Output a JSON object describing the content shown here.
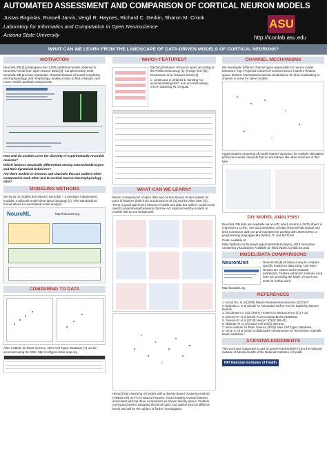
{
  "header": {
    "title": "AUTOMATED ASSESSMENT AND COMPARISON OF CORTICAL NEURON MODELS",
    "authors": "Justas Birgiolas, Russell Jarvis, Vergil R. Haynes, Richard C. Gerkin, Sharon M. Crook",
    "lab": "Laboratory for Informatics and Computation in Open Neuroscience",
    "university": "Arizona State University",
    "logo_text": "ASU",
    "url": "http://iconlab.asu.edu"
  },
  "question": "WHAT CAN WE LEARN FROM THE LANDSCAPE OF DATA-DRIVEN MODELS OF CORTICAL NEURONS?",
  "motivation": {
    "heading": "MOTIVATION",
    "body": "NeuroML-DB [2] catalogues over 1,000 published models obtained in NeuroML format from Open Source Brain [5]. Complementing OSB, NeuroML-DB provides systematic characterizations of model complexity, electrophysiology, and morphology, making it easy to find, evaluate, and reuse models and their components.",
    "q1": "How well do models cover the diversity of experimentally recorded neurons?",
    "q2": "Which features maximally differentiate among neuron/model types and their dynamical behaviors?",
    "q3": "Are there models or neurons and channels that are outliers when compared to each other and to cortical neuron electrophysiology data?"
  },
  "methods": {
    "heading": "MODELING METHODS",
    "body": "We focus on models described in NeuroML – a simulator independent, modular, multiscale model description language [4]. This standardized format allows for automated model analysis.",
    "neuroml_label": "NeuroML",
    "neuroml_url": "http://neuroml.org"
  },
  "comparing": {
    "heading": "COMPARING TO DATA",
    "body": "Allen Institute for Brain Science, Allen Cell Types Database [7] can be accessed using the SDK. http://celltypes.brain-map.org"
  },
  "features": {
    "heading": "WHICH FEATURES?",
    "body": "Electrical behavior of neuron types according to the Petilla terminology [1]. (Image from [6].) Druckmann et al. features below [3].",
    "codes": "c: continuous  d: delayed  b: bursting  AC: accommodating  NAC: non-accommodating  STUT: stuttering  IR: irregular"
  },
  "learn": {
    "heading": "WHAT CAN WE LEARN?",
    "body": "Below: Comparisons of open data and cortical neuron model outputs for pairs of features (both from Druckmann et al. [3] and the Allen SDK [7]). There is good agreement between models and data but outliers could reveal specific experimental behaviors that are not captured well by models or models that do not fit data well.",
    "cluster_body": "Hierarchical clustering of models with a density-based clustering method (HDBSCAN) on PCA-reduced features. Factor loading reveals features associated with top three components as shown directly above. Clusters correspond well to assigned electrical types, but outliers exist at different levels and will be the subject of further investigation."
  },
  "channels": {
    "heading": "CHANNEL MECHANISMS",
    "body": "We investigate different channel types responsible for neuron model behaviors. Top: Projected clusters of cortical neuron models in feature space. Bottom: Normalized maximal conductance for slow inactivating K+ channel in some for same models.",
    "body2": "Agglomerative clustering of model channel dynamics for multiple stimulation protocols reveals channels that do not behave like other channels of that type."
  },
  "diy": {
    "heading": "DIY MODEL ANALYSIS!",
    "body": "NeuroML-DB data are available via an API, which returns a JSON object in response to a URL. See documentation at https://neuroml-db.org/api and links to browser add-ons and examples for working with JSON URLs or programming languages like Python, R, and MATLAB.",
    "code": "Code Available at: https://github.com/rjurney/LargeScaleModelAnalysis_2018 Interactive Clustering Visualization Available at: https://dash.iconlab.asu.edu"
  },
  "comparisons": {
    "heading": "MODEL/DATA COMPARISONS",
    "logo": "NeuronUnit",
    "body": "NeuronUnit [8] provides a way to compare specific models to data using \"unit tests\". Results are shared at the SciDash dashboard. Feature extraction routines used here are providing the basis of novel unit tests for further work.",
    "dash_url": "http://scidash.org"
  },
  "references": {
    "heading": "REFERENCES",
    "items": [
      "1. Ascoli GA, et al (2008) Nature Reviews Neuroscience, 9(7):557.",
      "2. Birgiolas J, et al (2015) An Automated Online Tool for Exploring Neuron Models.",
      "3. Druckmann S, et al (2007) Frontiers in Neuroscience 1(1):7-18.",
      "4. Gleeson P, et al (2010) PLoS Comput Biol 6:e1000815.",
      "5. Gleeson P, et al (2019) Neuron 103(3):395-411.",
      "6. Markram H, et al (2015) Cell 163(2):456-492.",
      "7. Allen Institute for Brain Science (2015) Allen Cell Types Database.",
      "8. Omar C, et al (2014) Collaborative Infrastructure for Test-Driven Scientific Model Validation."
    ]
  },
  "ack": {
    "heading": "ACKNOWLEDGEMENTS",
    "body": "This work was supported in part by grant R01MH106674 from the National Institute of Mental Health of the National Institutes of Health.",
    "nih": "NIH National Institutes of Health"
  }
}
